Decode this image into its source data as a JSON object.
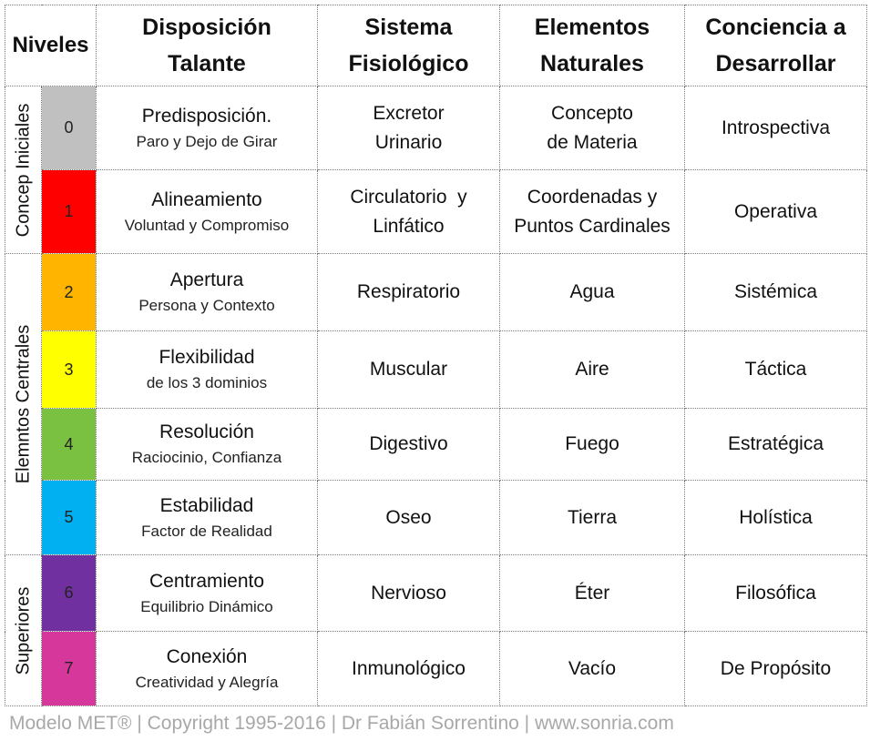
{
  "headers": {
    "niveles": "Niveles",
    "disposicion_1": "Disposición",
    "disposicion_2": "Talante",
    "sistema_1": "Sistema",
    "sistema_2": "Fisiológico",
    "elementos_1": "Elementos",
    "elementos_2": "Naturales",
    "conciencia_1": "Conciencia a",
    "conciencia_2": "Desarrollar"
  },
  "groups": {
    "concep": "Concep Iniciales",
    "centrales": "Elemntos Centrales",
    "superiores": "Superiores"
  },
  "rows": [
    {
      "level": "0",
      "color": "#c0c0c0",
      "disp": "Predisposición.",
      "disp_sub": "Paro y Dejo de Girar",
      "sistema_1": "Excretor",
      "sistema_2": "Urinario",
      "elem_1": "Concepto",
      "elem_2": "de Materia",
      "conciencia": "Introspectiva"
    },
    {
      "level": "1",
      "color": "#ff0000",
      "disp": "Alineamiento",
      "disp_sub": "Voluntad y Compromiso",
      "sistema_1": "Circulatorio  y",
      "sistema_2": "Linfático",
      "elem_1": "Coordenadas y",
      "elem_2": "Puntos Cardinales",
      "conciencia": "Operativa"
    },
    {
      "level": "2",
      "color": "#ffb400",
      "disp": "Apertura",
      "disp_sub": "Persona y Contexto",
      "sistema_1": "Respiratorio",
      "elem_1": "Agua",
      "conciencia": "Sistémica"
    },
    {
      "level": "3",
      "color": "#ffff00",
      "disp": "Flexibilidad",
      "disp_sub": "de los 3 dominios",
      "sistema_1": "Muscular",
      "elem_1": "Aire",
      "conciencia": "Táctica"
    },
    {
      "level": "4",
      "color": "#7ac142",
      "disp": "Resolución",
      "disp_sub": "Raciocinio, Confianza",
      "sistema_1": "Digestivo",
      "elem_1": "Fuego",
      "conciencia": "Estratégica"
    },
    {
      "level": "5",
      "color": "#00b0f0",
      "disp": "Estabilidad",
      "disp_sub": "Factor de Realidad",
      "sistema_1": "Oseo",
      "elem_1": "Tierra",
      "conciencia": "Holística"
    },
    {
      "level": "6",
      "color": "#7030a0",
      "disp": "Centramiento",
      "disp_sub": "Equilibrio Dinámico",
      "sistema_1": "Nervioso",
      "elem_1": "Éter",
      "conciencia": "Filosófica"
    },
    {
      "level": "7",
      "color": "#d6379a",
      "disp": "Conexión",
      "disp_sub": "Creatividad y Alegría",
      "sistema_1": "Inmunológico",
      "elem_1": "Vacío",
      "conciencia": "De Propósito"
    }
  ],
  "footer": "Modelo MET® | Copyright 1995-2016 | Dr Fabián Sorrentino | www.sonria.com"
}
